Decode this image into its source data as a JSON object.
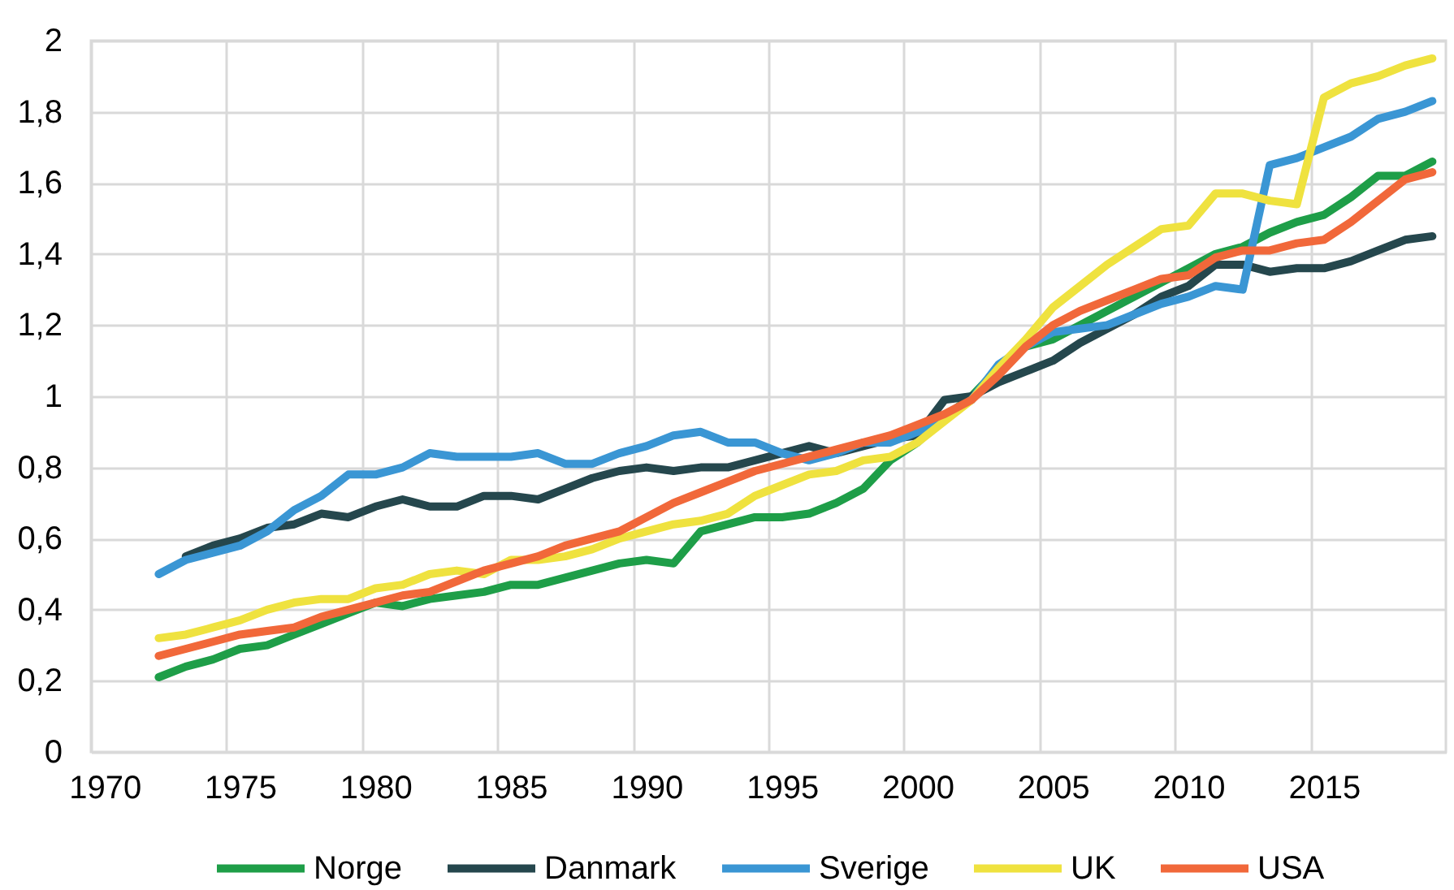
{
  "chart_data": {
    "type": "line",
    "categories": [
      "1970",
      null,
      null,
      null,
      null,
      "1975",
      null,
      null,
      null,
      null,
      "1980",
      null,
      null,
      null,
      null,
      "1985",
      null,
      null,
      null,
      null,
      "1990",
      null,
      null,
      null,
      null,
      "1995",
      null,
      null,
      null,
      null,
      "2000",
      null,
      null,
      null,
      null,
      "2005",
      null,
      null,
      null,
      null,
      "2010",
      null,
      null,
      null,
      null,
      "2015",
      null,
      null,
      null,
      null
    ],
    "series": [
      {
        "name": "Norge",
        "color": "#1e9e48",
        "values": [
          null,
          null,
          0.21,
          0.24,
          0.26,
          0.29,
          0.3,
          0.33,
          0.36,
          0.39,
          0.42,
          0.41,
          0.43,
          0.44,
          0.45,
          0.47,
          0.47,
          0.49,
          0.51,
          0.53,
          0.54,
          0.53,
          0.62,
          0.64,
          0.66,
          0.66,
          0.67,
          0.7,
          0.74,
          0.82,
          0.87,
          0.94,
          1.0,
          1.08,
          1.14,
          1.16,
          1.2,
          1.24,
          1.28,
          1.32,
          1.36,
          1.4,
          1.42,
          1.46,
          1.49,
          1.51,
          1.56,
          1.62,
          1.62,
          1.66
        ]
      },
      {
        "name": "Danmark",
        "color": "#25474d",
        "values": [
          null,
          null,
          null,
          0.55,
          0.58,
          0.6,
          0.63,
          0.64,
          0.67,
          0.66,
          0.69,
          0.71,
          0.69,
          0.69,
          0.72,
          0.72,
          0.71,
          0.74,
          0.77,
          0.79,
          0.8,
          0.79,
          0.8,
          0.8,
          0.82,
          0.84,
          0.86,
          0.84,
          0.86,
          0.88,
          0.89,
          0.99,
          1.0,
          1.04,
          1.07,
          1.1,
          1.15,
          1.19,
          1.23,
          1.28,
          1.31,
          1.37,
          1.37,
          1.35,
          1.36,
          1.36,
          1.38,
          1.41,
          1.44,
          1.45
        ]
      },
      {
        "name": "Sverige",
        "color": "#3a96d4",
        "values": [
          null,
          null,
          0.5,
          0.54,
          0.56,
          0.58,
          0.62,
          0.68,
          0.72,
          0.78,
          0.78,
          0.8,
          0.84,
          0.83,
          0.83,
          0.83,
          0.84,
          0.81,
          0.81,
          0.84,
          0.86,
          0.89,
          0.9,
          0.87,
          0.87,
          0.84,
          0.82,
          0.84,
          0.87,
          0.87,
          0.9,
          0.94,
          0.99,
          1.09,
          1.14,
          1.18,
          1.19,
          1.2,
          1.23,
          1.26,
          1.28,
          1.31,
          1.3,
          1.65,
          1.67,
          1.7,
          1.73,
          1.78,
          1.8,
          1.83
        ]
      },
      {
        "name": "UK",
        "color": "#efe23f",
        "values": [
          null,
          null,
          0.32,
          0.33,
          0.35,
          0.37,
          0.4,
          0.42,
          0.43,
          0.43,
          0.46,
          0.47,
          0.5,
          0.51,
          0.5,
          0.54,
          0.54,
          0.55,
          0.57,
          0.6,
          0.62,
          0.64,
          0.65,
          0.67,
          0.72,
          0.75,
          0.78,
          0.79,
          0.82,
          0.83,
          0.87,
          0.93,
          0.99,
          1.08,
          1.16,
          1.25,
          1.31,
          1.37,
          1.42,
          1.47,
          1.48,
          1.57,
          1.57,
          1.55,
          1.54,
          1.84,
          1.88,
          1.9,
          1.93,
          1.95
        ]
      },
      {
        "name": "USA",
        "color": "#f1683a",
        "values": [
          null,
          null,
          0.27,
          0.29,
          0.31,
          0.33,
          0.34,
          0.35,
          0.38,
          0.4,
          0.42,
          0.44,
          0.45,
          0.48,
          0.51,
          0.53,
          0.55,
          0.58,
          0.6,
          0.62,
          0.66,
          0.7,
          0.73,
          0.76,
          0.79,
          0.81,
          0.83,
          0.85,
          0.87,
          0.89,
          0.92,
          0.95,
          0.99,
          1.06,
          1.14,
          1.2,
          1.24,
          1.27,
          1.3,
          1.33,
          1.34,
          1.39,
          1.41,
          1.41,
          1.43,
          1.44,
          1.49,
          1.55,
          1.61,
          1.63
        ]
      }
    ],
    "ylim": [
      0,
      2
    ],
    "yticks": [
      0,
      {
        "value": 0.2,
        "label": "0,2"
      },
      {
        "value": 0.4,
        "label": "0,4"
      },
      {
        "value": 0.6,
        "label": "0,6"
      },
      {
        "value": 0.8,
        "label": "0,8"
      },
      1,
      {
        "value": 1.2,
        "label": "1,2"
      },
      {
        "value": 1.4,
        "label": "1,4"
      },
      {
        "value": 1.6,
        "label": "1,6"
      },
      {
        "value": 1.8,
        "label": "1,8"
      },
      2
    ],
    "grid": true,
    "legend": "bottom",
    "line_style": "solid"
  }
}
